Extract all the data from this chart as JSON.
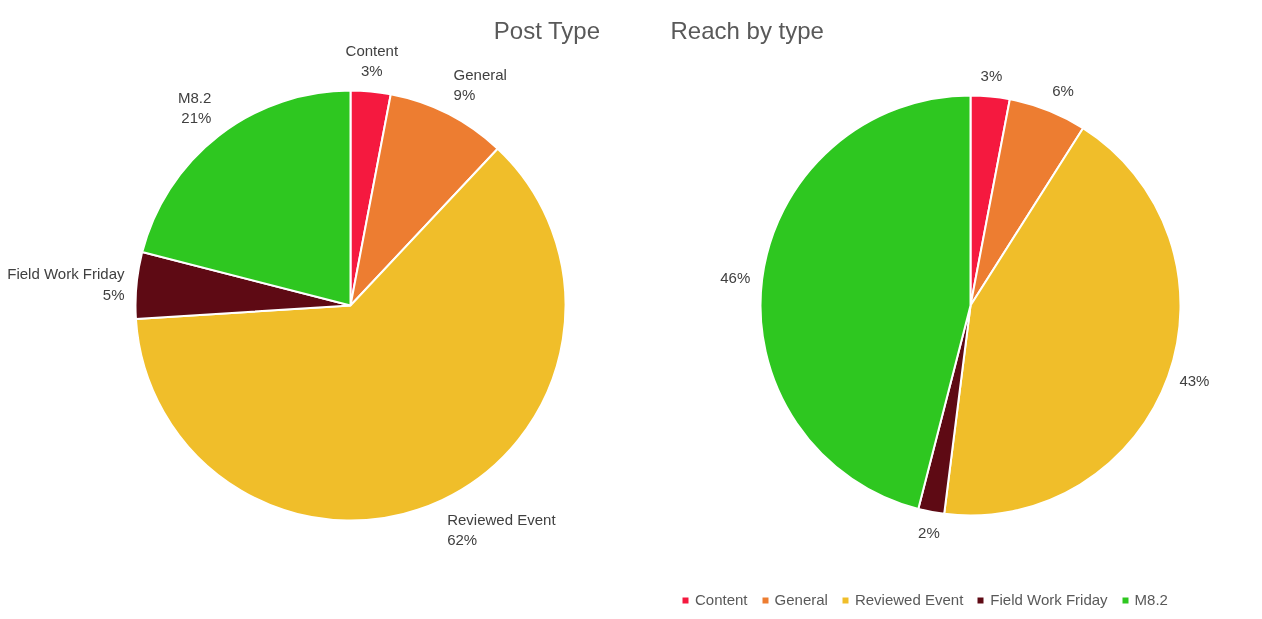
{
  "chart_data": [
    {
      "type": "pie",
      "title": "Post Type",
      "categories": [
        "Content",
        "General",
        "Reviewed Event",
        "Field Work Friday",
        "M8.2"
      ],
      "values": [
        3,
        9,
        62,
        5,
        21
      ],
      "value_labels": [
        "3%",
        "9%",
        "62%",
        "5%",
        "21%"
      ],
      "colors": [
        "#f5193f",
        "#ed7d31",
        "#f0be2a",
        "#5e0a14",
        "#2ec720"
      ],
      "legend": false
    },
    {
      "type": "pie",
      "title": "Reach by type",
      "categories": [
        "Content",
        "General",
        "Reviewed Event",
        "Field Work Friday",
        "M8.2"
      ],
      "values": [
        3,
        6,
        43,
        2,
        46
      ],
      "value_labels": [
        "3%",
        "6%",
        "43%",
        "2%",
        "46%"
      ],
      "colors": [
        "#f5193f",
        "#ed7d31",
        "#f0be2a",
        "#5e0a14",
        "#2ec720"
      ],
      "legend": "bottom"
    }
  ]
}
